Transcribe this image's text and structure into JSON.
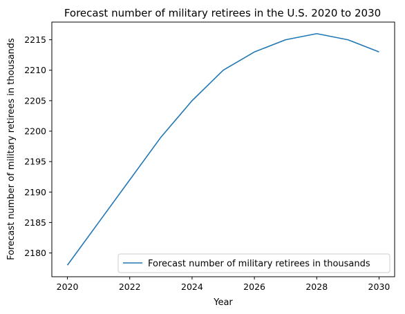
{
  "chart_data": {
    "type": "line",
    "title": "Forecast number of military retirees in the U.S. 2020 to 2030",
    "xlabel": "Year",
    "ylabel": "Forecast number of military retirees in thousands",
    "x": [
      2020,
      2021,
      2022,
      2023,
      2024,
      2025,
      2026,
      2027,
      2028,
      2029,
      2030
    ],
    "series": [
      {
        "name": "Forecast number of military retirees in thousands",
        "values": [
          2178,
          2185,
          2192,
          2199,
          2205,
          2210,
          2213,
          2215,
          2216,
          2215,
          2213
        ],
        "color": "#1f77b4"
      }
    ],
    "xticks": [
      2020,
      2022,
      2024,
      2026,
      2028,
      2030
    ],
    "yticks": [
      2180,
      2185,
      2190,
      2195,
      2200,
      2205,
      2210,
      2215
    ],
    "xlim": [
      2019.5,
      2030.5
    ],
    "ylim": [
      2176.1,
      2217.9
    ],
    "grid": false,
    "legend_position": "lower-right"
  }
}
